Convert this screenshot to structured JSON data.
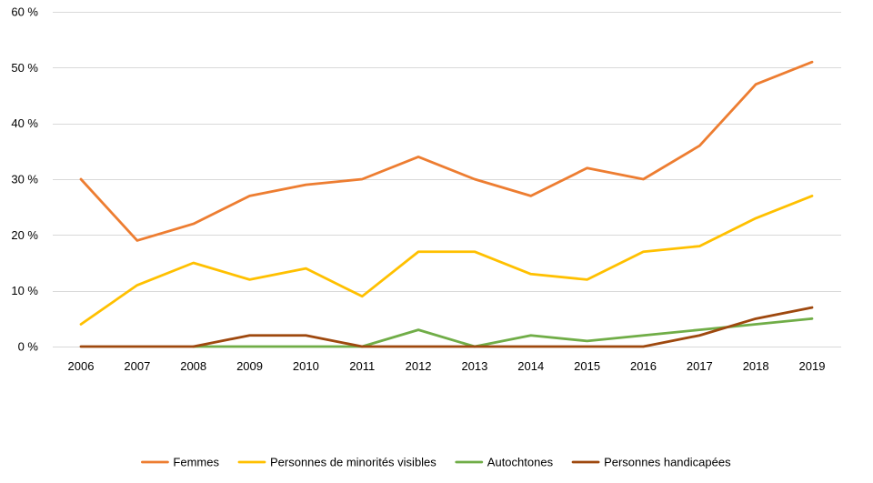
{
  "chart_data": {
    "type": "line",
    "title": "",
    "xlabel": "",
    "ylabel": "",
    "x": [
      "2006",
      "2007",
      "2008",
      "2009",
      "2010",
      "2011",
      "2012",
      "2013",
      "2014",
      "2015",
      "2016",
      "2017",
      "2018",
      "2019"
    ],
    "ylim": [
      0,
      60
    ],
    "yticks": [
      0,
      10,
      20,
      30,
      40,
      50,
      60
    ],
    "ytick_labels": [
      "0 %",
      "10 %",
      "20 %",
      "30 %",
      "40 %",
      "50 %",
      "60 %"
    ],
    "grid": true,
    "legend_position": "bottom",
    "series": [
      {
        "name": "Femmes",
        "color": "#ED7D31",
        "values": [
          30,
          19,
          22,
          27,
          29,
          30,
          34,
          30,
          27,
          32,
          30,
          36,
          47,
          51
        ]
      },
      {
        "name": "Personnes de minorités visibles",
        "color": "#FFC000",
        "values": [
          4,
          11,
          15,
          12,
          14,
          9,
          17,
          17,
          13,
          12,
          17,
          18,
          23,
          27
        ]
      },
      {
        "name": "Autochtones",
        "color": "#70AD47",
        "values": [
          null,
          null,
          0,
          0,
          0,
          0,
          3,
          0,
          2,
          1,
          2,
          3,
          4,
          5
        ]
      },
      {
        "name": "Personnes handicapées",
        "color": "#9E480E",
        "values": [
          0,
          0,
          0,
          2,
          2,
          0,
          0,
          0,
          0,
          0,
          0,
          2,
          5,
          7
        ]
      }
    ]
  }
}
